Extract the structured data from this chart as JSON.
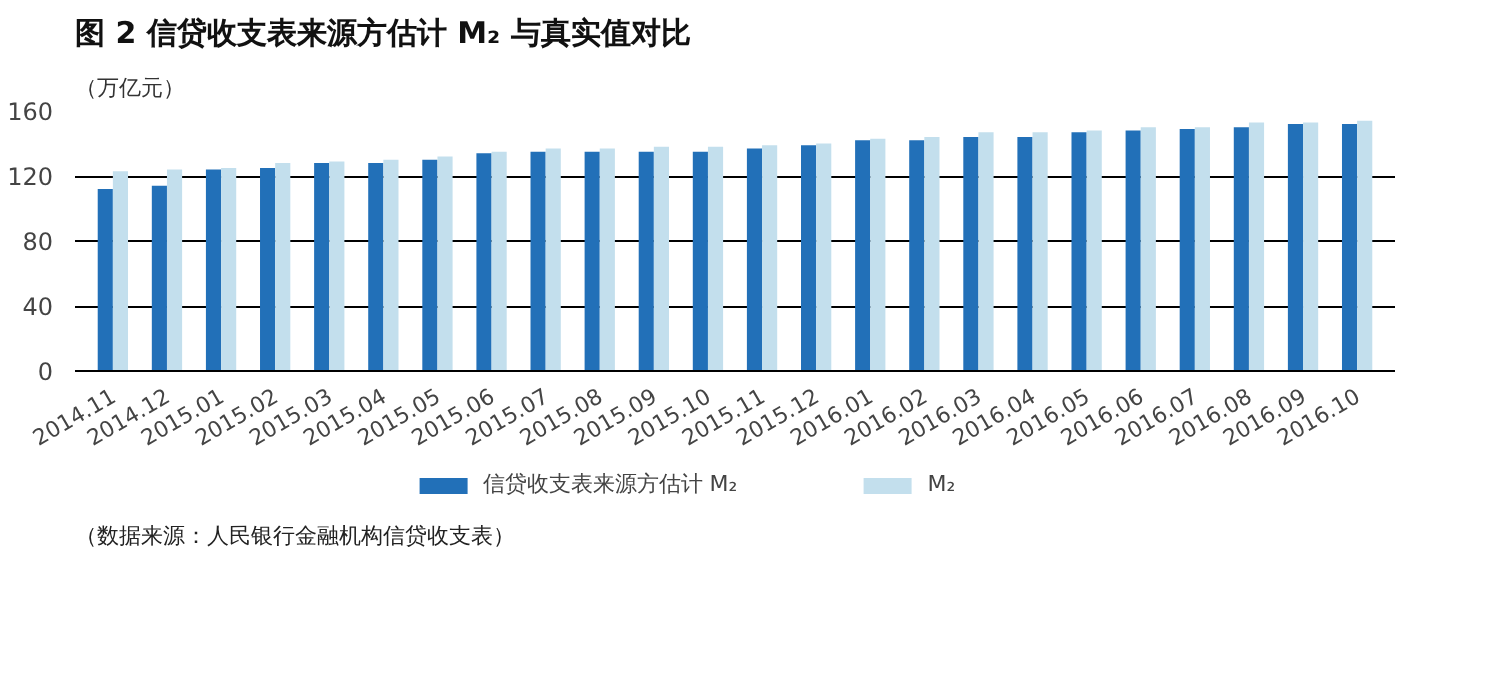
{
  "chart_data": {
    "type": "bar",
    "title": "图 2  信贷收支表来源方估计 M₂ 与真实值对比",
    "ylabel": "（万亿元）",
    "categories": [
      "2014.11",
      "2014.12",
      "2015.01",
      "2015.02",
      "2015.03",
      "2015.04",
      "2015.05",
      "2015.06",
      "2015.07",
      "2015.08",
      "2015.09",
      "2015.10",
      "2015.11",
      "2015.12",
      "2016.01",
      "2016.02",
      "2016.03",
      "2016.04",
      "2016.05",
      "2016.06",
      "2016.07",
      "2016.08",
      "2016.09",
      "2016.10"
    ],
    "series": [
      {
        "name": "信贷收支表来源方估计 M₂",
        "color": "#2270b8",
        "values": [
          112,
          114,
          124,
          125,
          128,
          128,
          130,
          134,
          135,
          135,
          135,
          135,
          137,
          139,
          142,
          142,
          144,
          144,
          147,
          148,
          149,
          150,
          152,
          152
        ]
      },
      {
        "name": "M₂",
        "color": "#c3dfed",
        "values": [
          123,
          124,
          125,
          128,
          129,
          130,
          132,
          135,
          137,
          137,
          138,
          138,
          139,
          140,
          143,
          144,
          147,
          147,
          148,
          150,
          150,
          153,
          153,
          154
        ]
      }
    ],
    "ylim": [
      0,
      160
    ],
    "yticks": [
      0,
      40,
      80,
      120,
      160
    ],
    "grid": "y",
    "legend": "bottom",
    "annotations": [
      "（数据来源：人民银行金融机构信贷收支表）"
    ]
  }
}
